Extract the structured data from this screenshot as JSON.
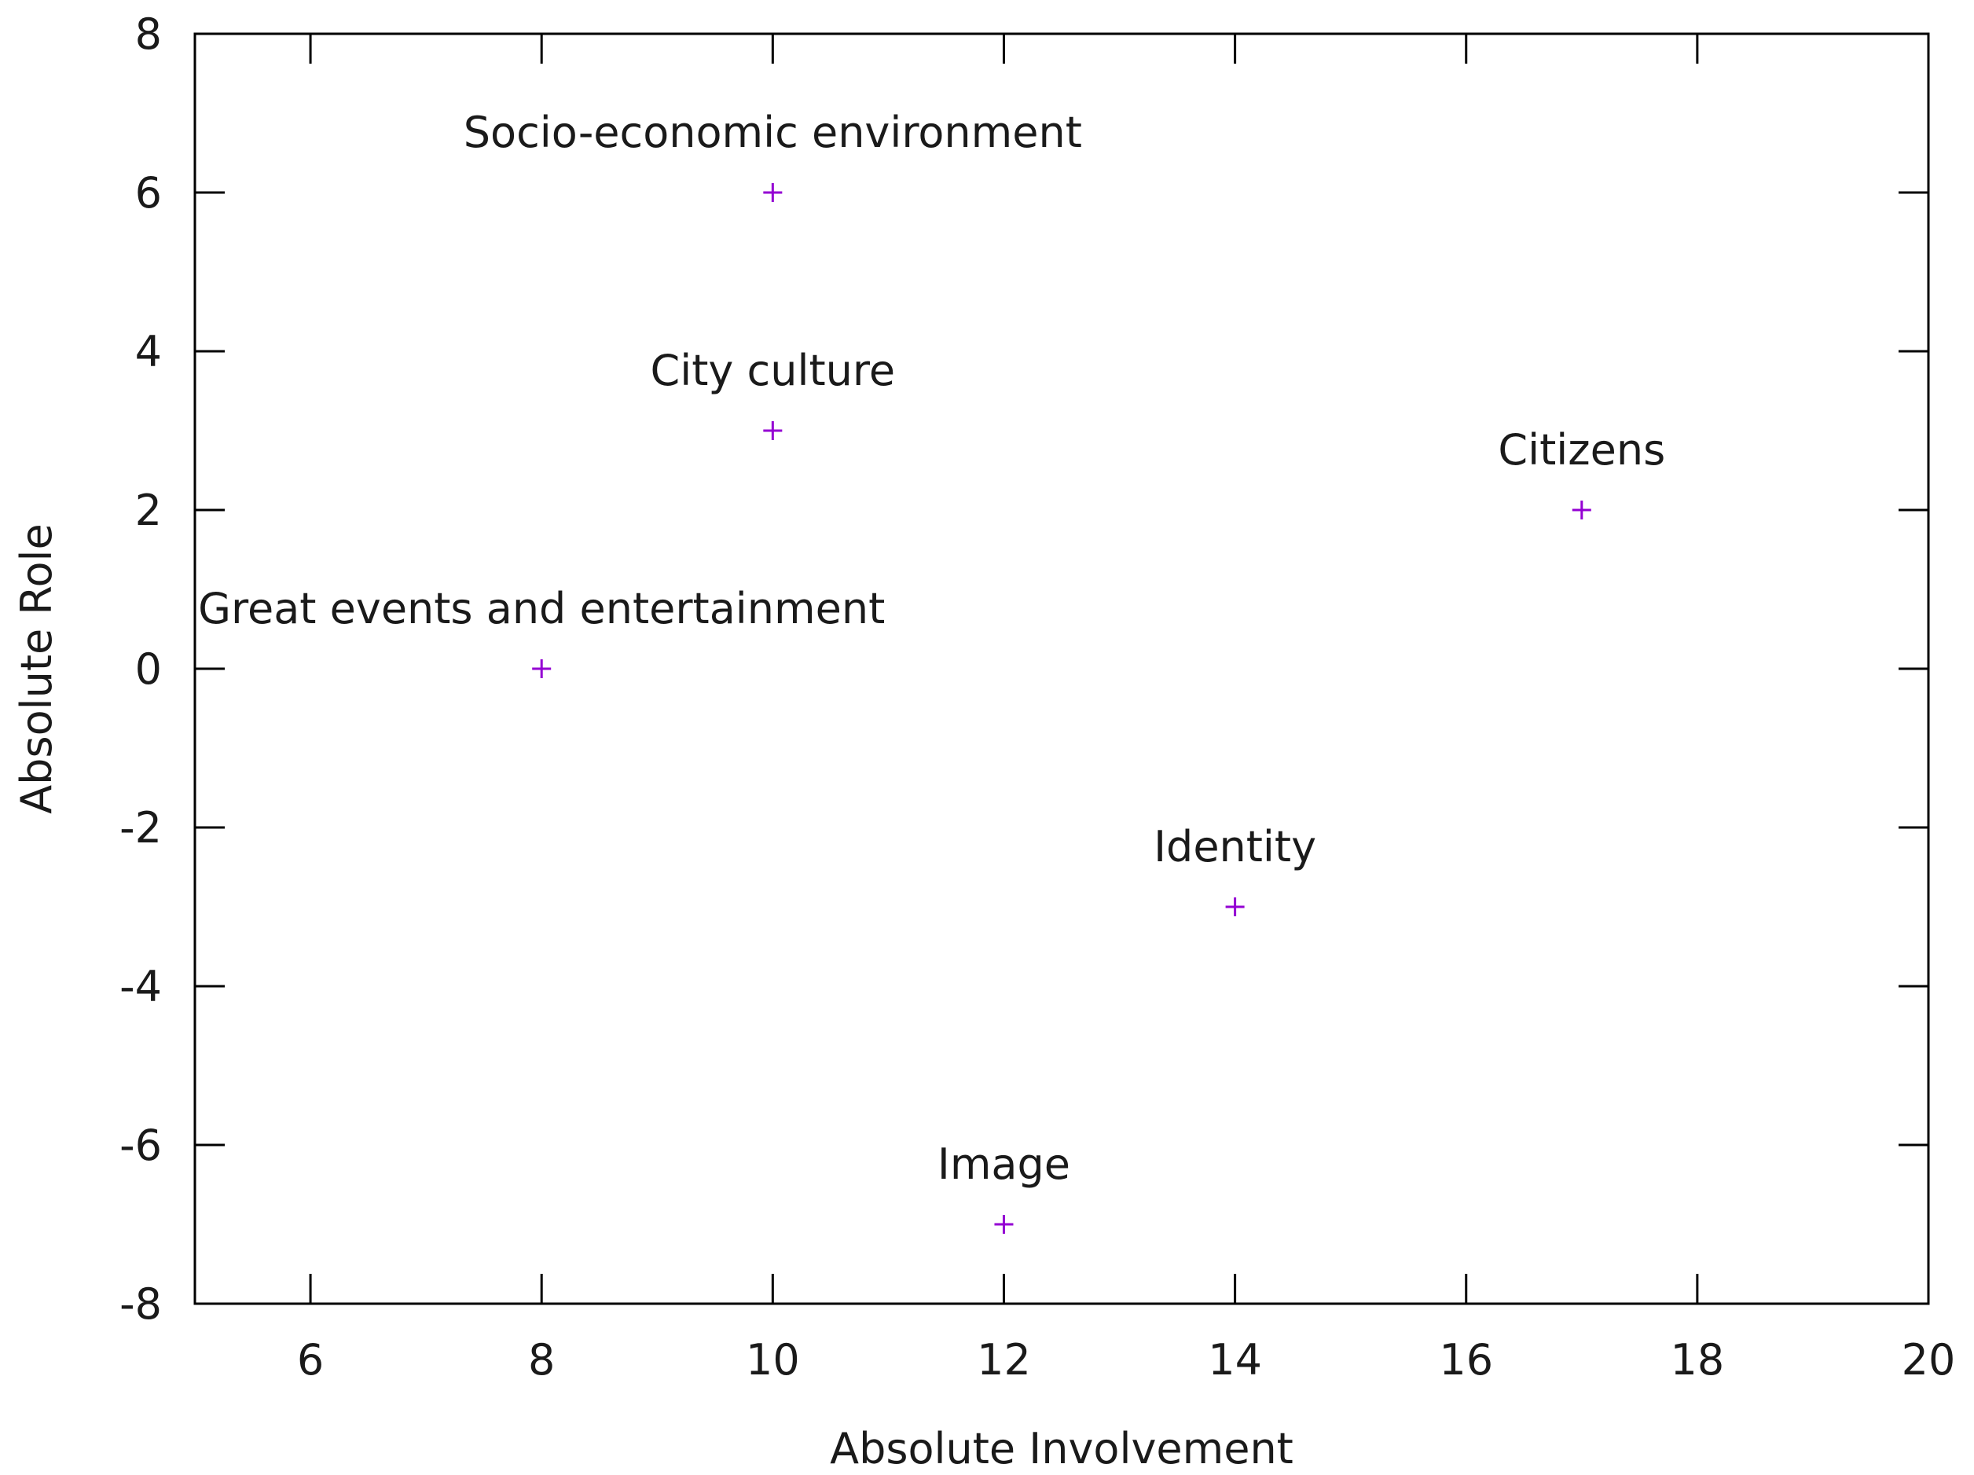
{
  "chart_data": {
    "type": "scatter",
    "xlabel": "Absolute Involvement",
    "ylabel": "Absolute Role",
    "xlim": [
      5,
      20
    ],
    "ylim": [
      -8,
      8
    ],
    "xticks": [
      6,
      8,
      10,
      12,
      14,
      16,
      18,
      20
    ],
    "yticks": [
      -8,
      -6,
      -4,
      -2,
      0,
      2,
      4,
      6,
      8
    ],
    "grid": false,
    "marker": "plus",
    "color": "#9400d3",
    "points": [
      {
        "label": "Socio-economic environment",
        "x": 10,
        "y": 6
      },
      {
        "label": "City culture",
        "x": 10,
        "y": 3
      },
      {
        "label": "Citizens",
        "x": 17,
        "y": 2
      },
      {
        "label": "Great events and entertainment",
        "x": 8,
        "y": 0
      },
      {
        "label": "Identity",
        "x": 14,
        "y": -3
      },
      {
        "label": "Image",
        "x": 12,
        "y": -7
      }
    ]
  }
}
